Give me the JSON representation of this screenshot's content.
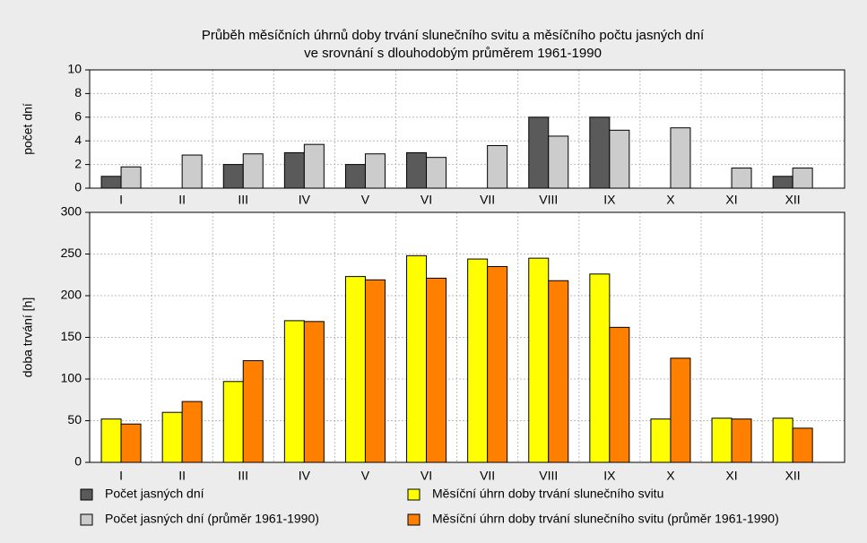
{
  "chart_data": [
    {
      "type": "bar",
      "title": [
        "Průběh měsíčních úhrnů doby trvání slunečního svitu a měsíčního počtu jasných dní",
        "ve srovnání s dlouhodobým průměrem 1961-1990"
      ],
      "y_label": "počet dní",
      "categories": [
        "I",
        "II",
        "III",
        "IV",
        "V",
        "VI",
        "VII",
        "VIII",
        "IX",
        "X",
        "XI",
        "XII"
      ],
      "series": [
        {
          "name": "Počet jasných dní",
          "color": "#5a5a5a",
          "values": [
            1,
            0,
            2,
            3,
            2,
            3,
            0,
            6,
            6,
            0,
            0,
            1
          ]
        },
        {
          "name": "Počet jasných dní (průměr 1961-1990)",
          "color": "#cccccc",
          "values": [
            1.8,
            2.8,
            2.9,
            3.7,
            2.9,
            2.6,
            3.6,
            4.4,
            4.9,
            5.1,
            1.7,
            1.7
          ]
        }
      ],
      "ylim": [
        0,
        10
      ],
      "yticks": [
        0,
        2,
        4,
        6,
        8,
        10
      ],
      "grid": true
    },
    {
      "type": "bar",
      "y_label": "doba trvání [h]",
      "categories": [
        "I",
        "II",
        "III",
        "IV",
        "V",
        "VI",
        "VII",
        "VIII",
        "IX",
        "X",
        "XI",
        "XII"
      ],
      "series": [
        {
          "name": "Měsíční úhrn doby trvání slunečního svitu",
          "color": "#ffff00",
          "values": [
            52,
            60,
            97,
            170,
            223,
            248,
            244,
            245,
            226,
            52,
            53,
            53
          ]
        },
        {
          "name": "Měsíční úhrn doby trvání slunečního svitu (průměr 1961-1990)",
          "color": "#ff8000",
          "values": [
            46,
            73,
            122,
            169,
            219,
            221,
            235,
            218,
            162,
            125,
            52,
            41
          ]
        }
      ],
      "ylim": [
        0,
        300
      ],
      "yticks": [
        0,
        50,
        100,
        150,
        200,
        250,
        300
      ],
      "grid": true
    }
  ]
}
